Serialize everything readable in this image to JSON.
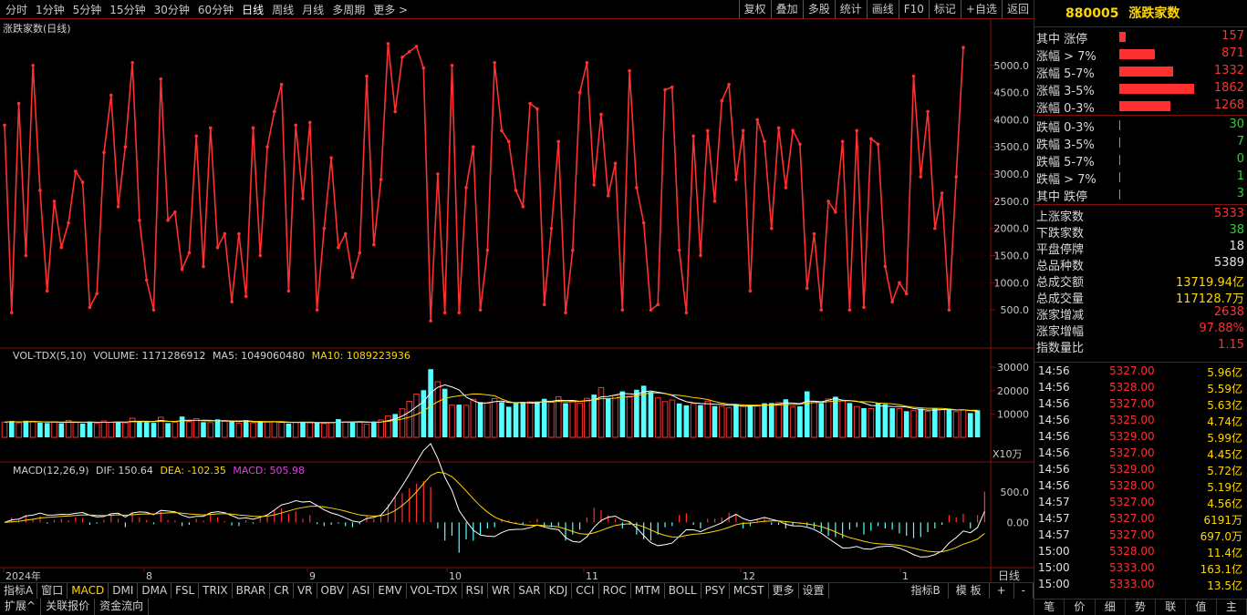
{
  "toolbar": {
    "periods": [
      "分时",
      "1分钟",
      "5分钟",
      "15分钟",
      "30分钟",
      "60分钟",
      "日线",
      "周线",
      "月线",
      "多周期",
      "更多 >"
    ],
    "active_period": "日线",
    "actions": [
      "复权",
      "叠加",
      "多股",
      "统计",
      "画线",
      "F10",
      "标记",
      "+自选",
      "返回"
    ]
  },
  "main_panel": {
    "title": "涨跌家数(日线)",
    "y_ticks": [
      "5000.0",
      "4500.0",
      "4000.0",
      "3500.0",
      "3000.0",
      "2500.0",
      "2000.0",
      "1500.0",
      "1000.0",
      "500.0"
    ]
  },
  "vol_panel": {
    "name": "VOL-TDX(5,10)",
    "volume": "VOLUME: 1171286912",
    "ma5": "MA5: 1049060480",
    "ma10": "MA10: 1089223936",
    "y_ticks": [
      "30000",
      "20000",
      "10000"
    ],
    "unit": "X10万"
  },
  "macd_panel": {
    "name": "MACD(12,26,9)",
    "dif": "DIF: 150.64",
    "dea": "DEA: -102.35",
    "macd": "MACD: 505.98",
    "y_ticks": [
      "500.0",
      "0.00"
    ]
  },
  "x_axis": {
    "labels": [
      "2024年",
      "8",
      "9",
      "10",
      "11",
      "12",
      "1"
    ],
    "period_label": "日线"
  },
  "indicator_tabs": [
    "指标A",
    "窗口",
    "MACD",
    "DMI",
    "DMA",
    "FSL",
    "TRIX",
    "BRAR",
    "CR",
    "VR",
    "OBV",
    "ASI",
    "EMV",
    "VOL-TDX",
    "RSI",
    "WR",
    "SAR",
    "KDJ",
    "CCI",
    "ROC",
    "MTM",
    "BOLL",
    "PSY",
    "MCST",
    "更多",
    "设置"
  ],
  "active_indicator": "MACD",
  "indicator_tabs_right": [
    "指标B",
    "模 板",
    "+",
    "-"
  ],
  "bottom_tabs": [
    "扩展^",
    "关联报价",
    "资金流向"
  ],
  "right_panel": {
    "code": "880005",
    "name": "涨跌家数",
    "rise_rows": [
      {
        "label": "其中 涨停",
        "value": "157",
        "ratio": 0.08
      },
      {
        "label": "涨幅 > 7%",
        "value": "871",
        "ratio": 0.47
      },
      {
        "label": "涨幅 5-7%",
        "value": "1332",
        "ratio": 0.72
      },
      {
        "label": "涨幅 3-5%",
        "value": "1862",
        "ratio": 1.0
      },
      {
        "label": "涨幅 0-3%",
        "value": "1268",
        "ratio": 0.68
      }
    ],
    "fall_rows": [
      {
        "label": "跌幅 0-3%",
        "value": "30"
      },
      {
        "label": "跌幅 3-5%",
        "value": "7"
      },
      {
        "label": "跌幅 5-7%",
        "value": "0"
      },
      {
        "label": "跌幅 > 7%",
        "value": "1"
      },
      {
        "label": "其中 跌停",
        "value": "3"
      }
    ],
    "stats": [
      {
        "label": "上涨家数",
        "value": "5333",
        "color": "#ff3030"
      },
      {
        "label": "下跌家数",
        "value": "38",
        "color": "#30d030"
      },
      {
        "label": "平盘停牌",
        "value": "18",
        "color": "#e0e0e0"
      },
      {
        "label": "总品种数",
        "value": "5389",
        "color": "#e0e0e0"
      },
      {
        "label": "总成交额",
        "value": "13719.94亿",
        "color": "#ffd700"
      },
      {
        "label": "总成交量",
        "value": "117128.7万",
        "color": "#ffd700"
      },
      {
        "label": "涨家增减",
        "value": "2638",
        "color": "#ff3030"
      },
      {
        "label": "涨家增幅",
        "value": "97.88%",
        "color": "#ff3030"
      },
      {
        "label": "指数量比",
        "value": "1.15",
        "color": "#ff3030"
      }
    ],
    "ticks": [
      {
        "time": "14:56",
        "price": "5327.00",
        "amount": "5.96亿"
      },
      {
        "time": "14:56",
        "price": "5328.00",
        "amount": "5.59亿"
      },
      {
        "time": "14:56",
        "price": "5327.00",
        "amount": "5.63亿"
      },
      {
        "time": "14:56",
        "price": "5325.00",
        "amount": "4.74亿"
      },
      {
        "time": "14:56",
        "price": "5329.00",
        "amount": "5.99亿"
      },
      {
        "time": "14:56",
        "price": "5327.00",
        "amount": "4.45亿"
      },
      {
        "time": "14:56",
        "price": "5329.00",
        "amount": "5.72亿"
      },
      {
        "time": "14:56",
        "price": "5328.00",
        "amount": "5.19亿"
      },
      {
        "time": "14:57",
        "price": "5327.00",
        "amount": "4.56亿"
      },
      {
        "time": "14:57",
        "price": "5327.00",
        "amount": "6191万"
      },
      {
        "time": "14:57",
        "price": "5327.00",
        "amount": "697.0万"
      },
      {
        "time": "15:00",
        "price": "5328.00",
        "amount": "11.4亿"
      },
      {
        "time": "15:00",
        "price": "5333.00",
        "amount": "163.1亿"
      },
      {
        "time": "15:00",
        "price": "5333.00",
        "amount": "13.5亿"
      }
    ],
    "bottom_tabs": [
      "笔",
      "价",
      "细",
      "势",
      "联",
      "值",
      "主"
    ]
  },
  "chart_data": {
    "type": "line",
    "main_series": [
      3900,
      450,
      4300,
      1500,
      5000,
      2700,
      850,
      2500,
      1650,
      2100,
      3050,
      2850,
      550,
      800,
      3400,
      4450,
      2400,
      3500,
      5050,
      2150,
      1050,
      500,
      4750,
      2150,
      2300,
      1250,
      1550,
      3700,
      1300,
      3850,
      1650,
      1900,
      650,
      1900,
      750,
      3850,
      1500,
      3500,
      4150,
      4650,
      850,
      3900,
      2550,
      3950,
      500,
      2000,
      3300,
      1650,
      1900,
      1100,
      1550,
      4800,
      1700,
      2900,
      5400,
      4150,
      5150,
      5250,
      5350,
      4950,
      300,
      3000,
      450,
      5000,
      450,
      2750,
      3500,
      500,
      1600,
      5050,
      3800,
      3600,
      2700,
      2400,
      4300,
      4200,
      600,
      2000,
      3600,
      450,
      1600,
      4500,
      5050,
      2800,
      4100,
      2600,
      3200,
      500,
      4900,
      2750,
      2100,
      500,
      600,
      4550,
      4600,
      1600,
      450,
      3700,
      1500,
      3800,
      2500,
      4350,
      4650,
      2900,
      3800,
      850,
      4000,
      3600,
      2000,
      3850,
      2750,
      3800,
      3550,
      900,
      1900,
      500,
      2500,
      2300,
      3600,
      500,
      3800,
      550,
      3650,
      3550,
      1300,
      650,
      1000,
      800,
      4800,
      2950,
      4150,
      2000,
      2650,
      500,
      2950,
      5330
    ],
    "vol_series": [
      6500,
      7000,
      6200,
      7100,
      6900,
      6300,
      6100,
      6600,
      6000,
      7200,
      6400,
      5900,
      6800,
      6100,
      7000,
      6500,
      6600,
      6200,
      8200,
      6900,
      6500,
      6200,
      8600,
      6100,
      6400,
      8900,
      6700,
      8000,
      6500,
      6300,
      7700,
      6900,
      6800,
      6100,
      7400,
      6200,
      6600,
      6600,
      6700,
      6400,
      5900,
      6400,
      6700,
      6300,
      6200,
      5900,
      6300,
      7800,
      6600,
      6400,
      6600,
      5600,
      6800,
      7400,
      9200,
      10000,
      12200,
      15400,
      18500,
      20200,
      29200,
      23800,
      20800,
      13800,
      14000,
      13700,
      16300,
      15100,
      14700,
      16600,
      15100,
      13100,
      14800,
      15200,
      15200,
      15300,
      16500,
      15000,
      17400,
      14600,
      15500,
      14700,
      16700,
      18300,
      21300,
      16500,
      18000,
      19700,
      17600,
      20400,
      22100,
      19500,
      16900,
      15300,
      16000,
      14500,
      13700,
      14500,
      13800,
      15500,
      13400,
      13300,
      12600,
      14100,
      13300,
      13800,
      13400,
      14600,
      14700,
      14900,
      16300,
      13000,
      13300,
      19700,
      15300,
      14700,
      16400,
      17400,
      15600,
      14700,
      13200,
      12500,
      12300,
      14600,
      14200,
      12500,
      12300,
      11200,
      11400,
      12300,
      11100,
      12500,
      11900,
      12000,
      11000,
      11700,
      10400,
      11600
    ],
    "macd_hist": [
      0,
      80,
      40,
      120,
      60,
      100,
      -20,
      40,
      60,
      30,
      80,
      70,
      -40,
      -20,
      40,
      120,
      60,
      -80,
      160,
      80,
      40,
      -30,
      180,
      40,
      30,
      -60,
      -40,
      60,
      30,
      150,
      80,
      20,
      -50,
      -60,
      40,
      -20,
      80,
      100,
      200,
      230,
      140,
      180,
      60,
      120,
      -30,
      -60,
      -40,
      -20,
      -60,
      -80,
      -30,
      120,
      60,
      100,
      300,
      420,
      480,
      560,
      640,
      680,
      580,
      -100,
      -300,
      -220,
      -500,
      -280,
      -300,
      -200,
      -100,
      -80,
      60,
      40,
      -20,
      -30,
      20,
      60,
      -80,
      -80,
      -60,
      -300,
      -200,
      -120,
      80,
      240,
      200,
      120,
      60,
      -100,
      -40,
      -200,
      -280,
      -300,
      -200,
      -80,
      -60,
      120,
      150,
      -40,
      -100,
      60,
      60,
      80,
      160,
      140,
      -100,
      -60,
      60,
      80,
      -40,
      -40,
      -100,
      -60,
      -20,
      -60,
      -100,
      -160,
      -220,
      -240,
      -260,
      -120,
      -80,
      -200,
      -140,
      -60,
      -100,
      -120,
      -180,
      -220,
      -260,
      -240,
      -160,
      -100,
      -40,
      120,
      80,
      140,
      -100,
      120,
      506
    ],
    "xlabel": "",
    "ylabel": "",
    "ylim_main": [
      0,
      5700
    ],
    "ylim_vol": [
      0,
      32000
    ],
    "ylim_macd": [
      -700,
      800
    ],
    "grid": false
  }
}
